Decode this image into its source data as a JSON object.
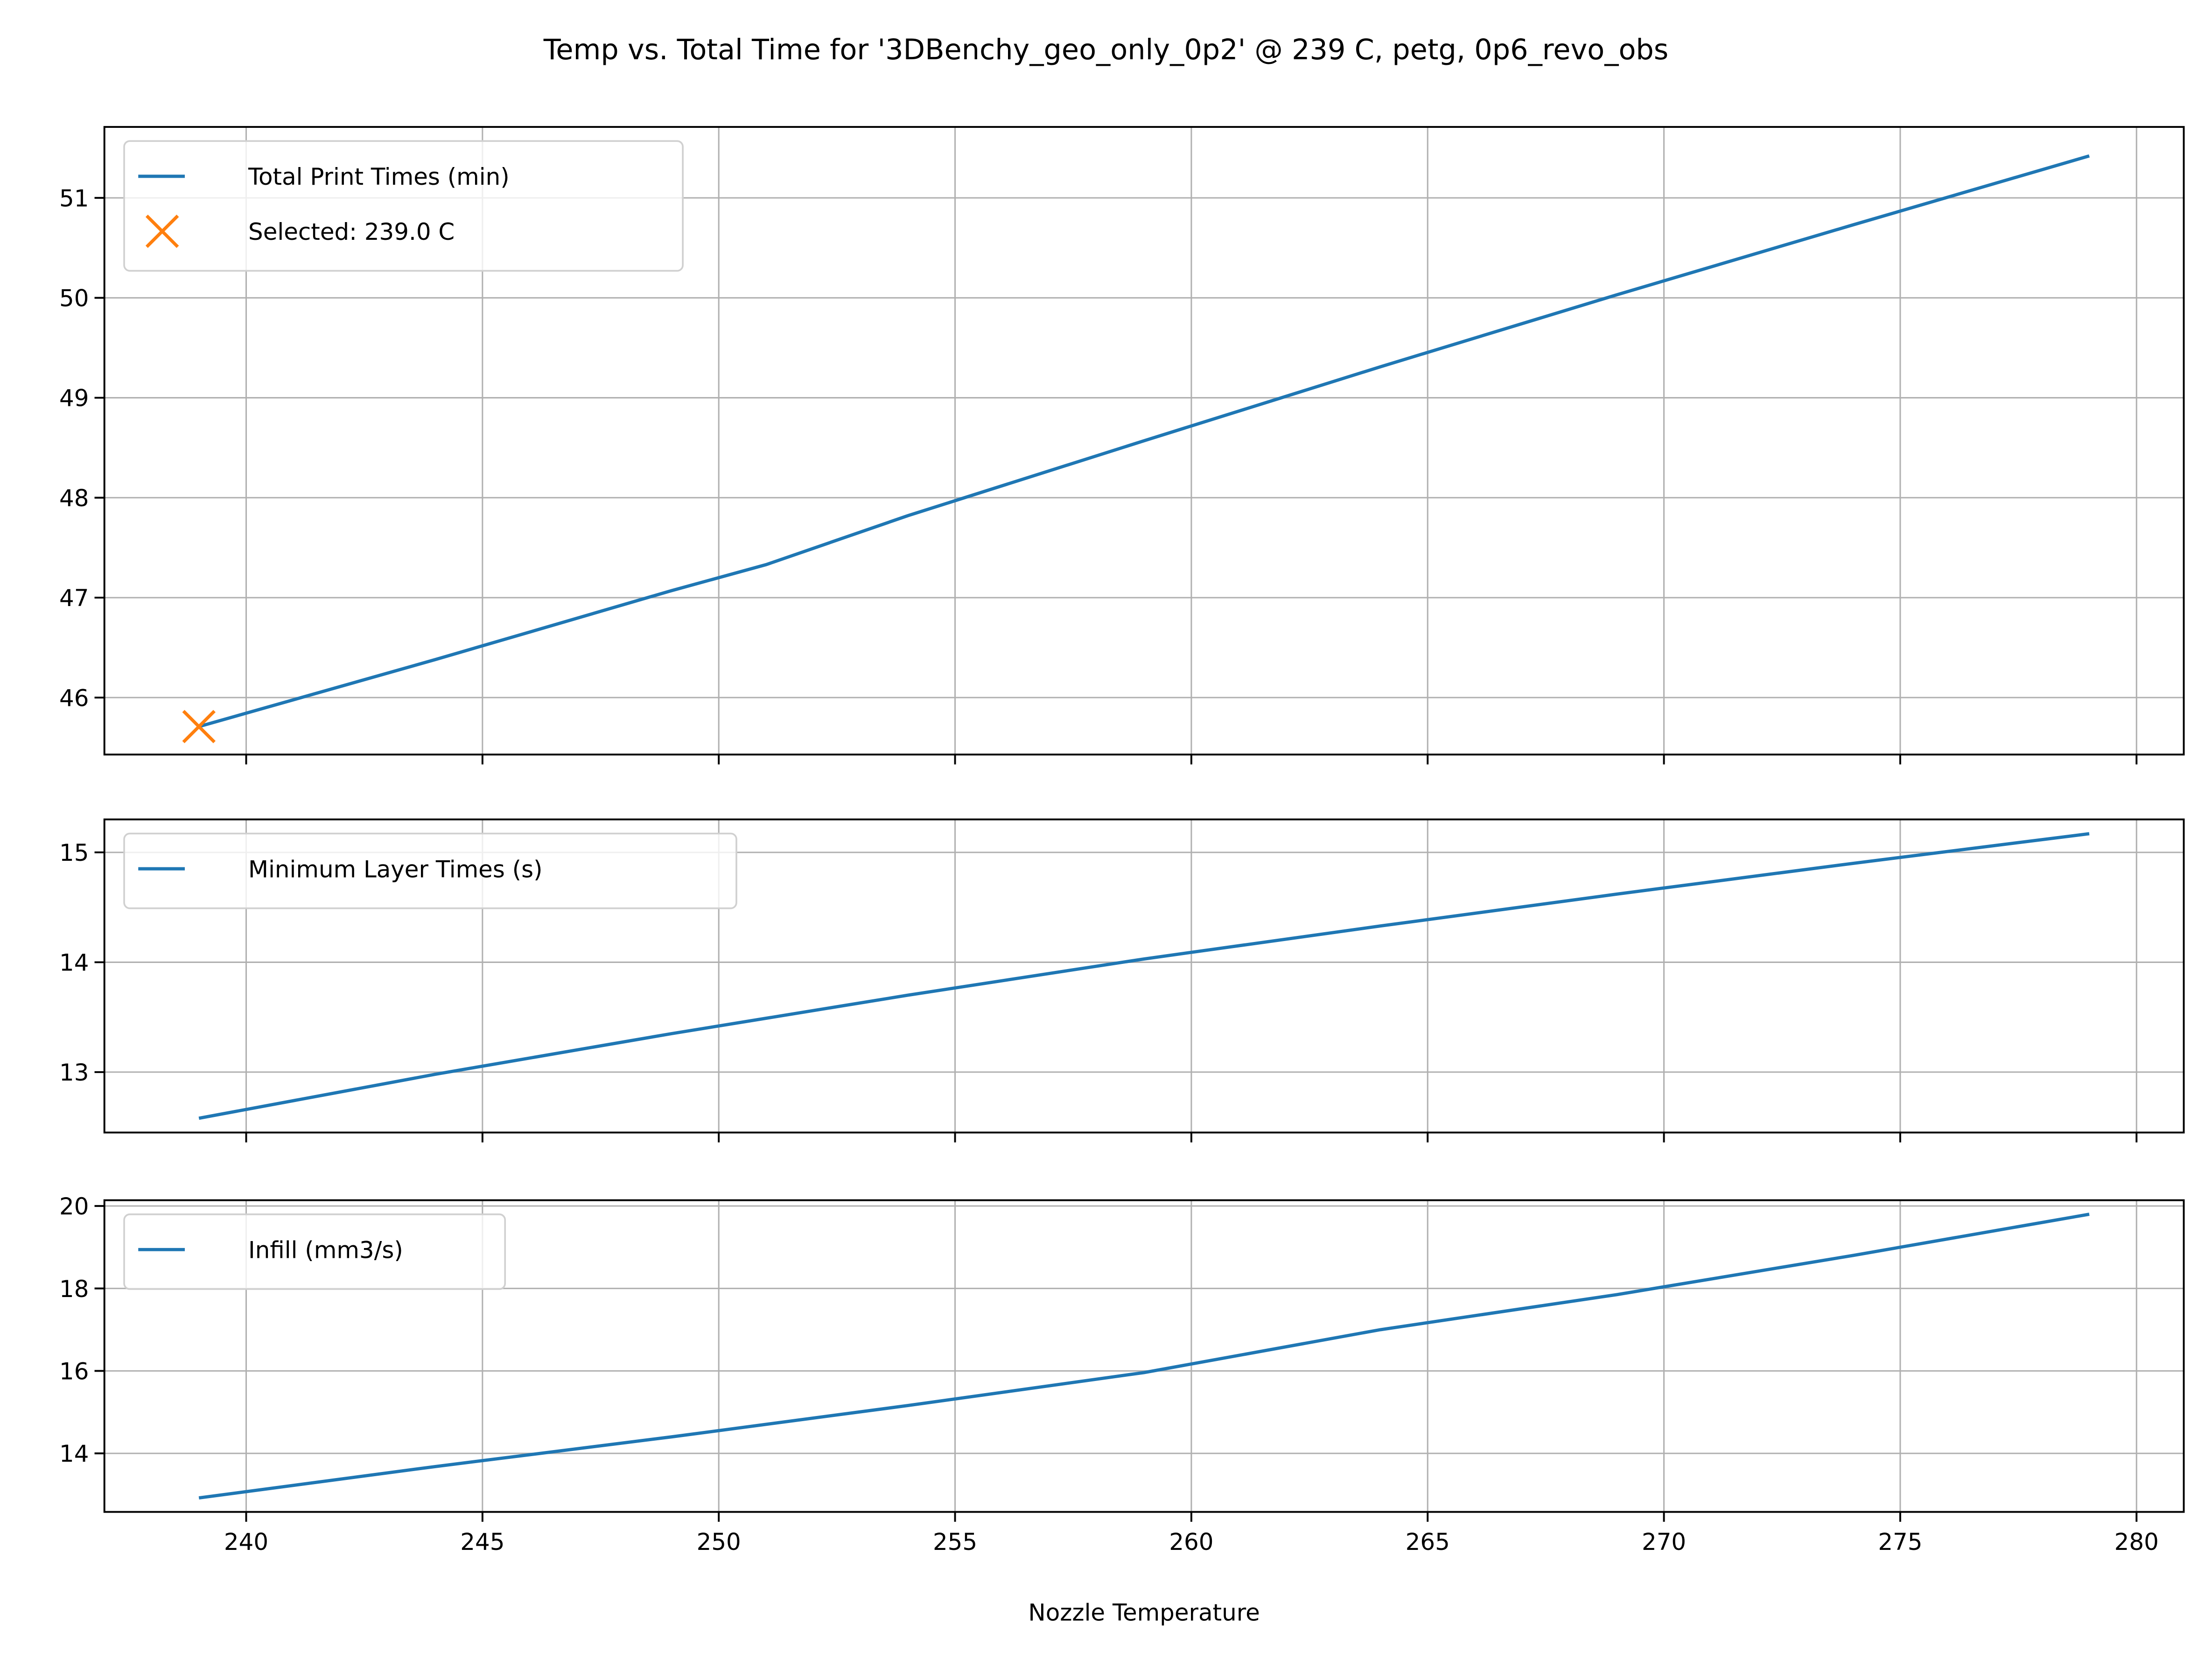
{
  "chart_data": [
    {
      "type": "line",
      "title": "Temp vs. Total Time for '3DBenchy_geo_only_0p2' @ 239 C, petg, 0p6_revo_obs",
      "xlabel": "",
      "ylabel": "",
      "xlim": [
        237,
        281
      ],
      "ylim": [
        45.43,
        51.71
      ],
      "xticks": [
        240,
        245,
        250,
        255,
        260,
        265,
        270,
        275,
        280
      ],
      "yticks": [
        46,
        47,
        48,
        49,
        50,
        51
      ],
      "grid": true,
      "legend_position": "upper-left",
      "series": [
        {
          "name": "Total Print Times (min)",
          "color": "#1f77b4",
          "kind": "line",
          "x": [
            239,
            244,
            249,
            251,
            254,
            259,
            264,
            269,
            274,
            279
          ],
          "y": [
            45.71,
            46.38,
            47.07,
            47.33,
            47.82,
            48.57,
            49.31,
            50.03,
            50.73,
            51.42
          ]
        },
        {
          "name": "Selected: 239.0 C",
          "color": "#ff7f0e",
          "kind": "marker-x",
          "x": [
            239
          ],
          "y": [
            45.71
          ]
        }
      ]
    },
    {
      "type": "line",
      "xlim": [
        237,
        281
      ],
      "ylim": [
        12.45,
        15.3
      ],
      "xticks": [
        240,
        245,
        250,
        255,
        260,
        265,
        270,
        275,
        280
      ],
      "yticks": [
        13,
        14,
        15
      ],
      "grid": true,
      "legend_position": "upper-left",
      "series": [
        {
          "name": "Minimum Layer Times (s)",
          "color": "#1f77b4",
          "kind": "line",
          "x": [
            239,
            244,
            249,
            254,
            259,
            264,
            269,
            274,
            279
          ],
          "y": [
            12.58,
            12.98,
            13.35,
            13.7,
            14.03,
            14.33,
            14.62,
            14.9,
            15.17
          ]
        }
      ]
    },
    {
      "type": "line",
      "xlabel": "Nozzle Temperature",
      "xlim": [
        237,
        281
      ],
      "ylim": [
        12.58,
        20.14
      ],
      "xticks": [
        240,
        245,
        250,
        255,
        260,
        265,
        270,
        275,
        280
      ],
      "yticks": [
        14,
        16,
        18,
        20
      ],
      "grid": true,
      "legend_position": "upper-left",
      "series": [
        {
          "name": "Infill (mm3/s)",
          "color": "#1f77b4",
          "kind": "line",
          "x": [
            239,
            244,
            249,
            254,
            259,
            264,
            269,
            274,
            279
          ],
          "y": [
            12.92,
            13.68,
            14.4,
            15.16,
            15.96,
            17.0,
            17.85,
            18.8,
            19.8
          ]
        }
      ]
    }
  ]
}
